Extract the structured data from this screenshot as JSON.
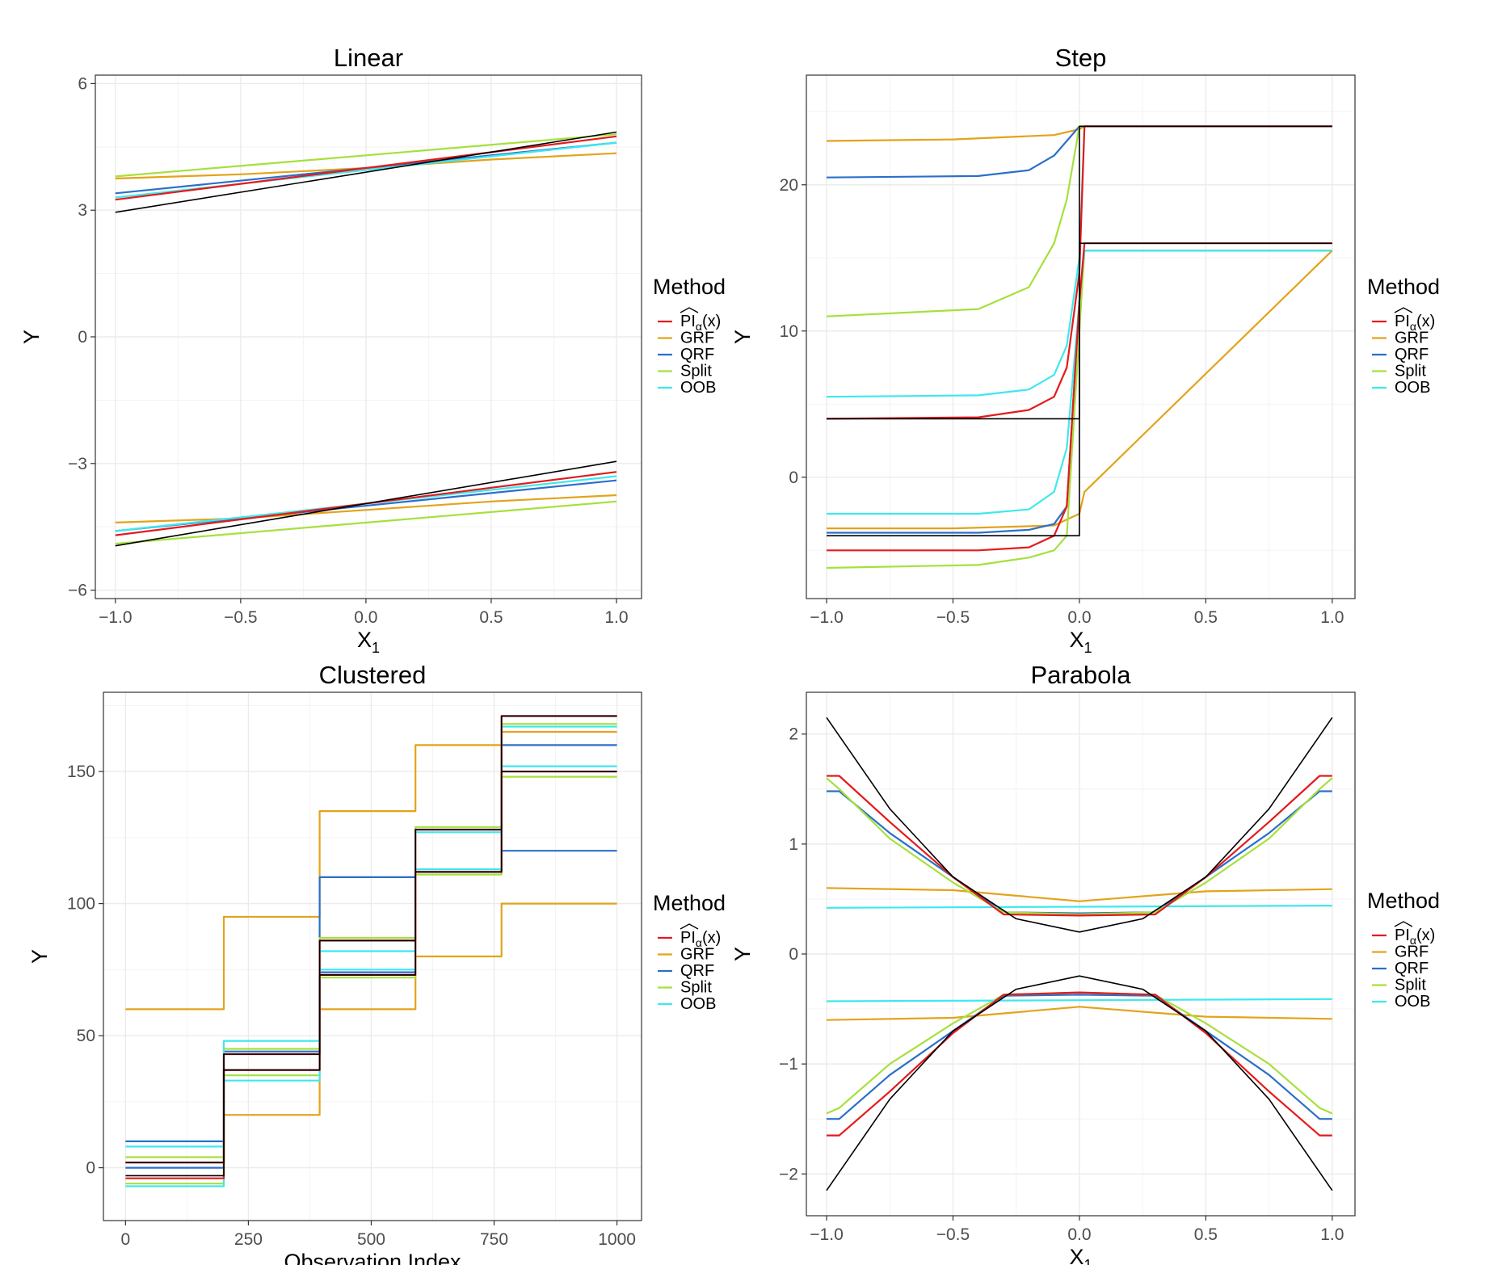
{
  "legend_title": "Method",
  "legend_items": [
    {
      "label": "PI",
      "sub": "α",
      "suffix": "(x)",
      "hat": true,
      "color": "#e41a1c"
    },
    {
      "label": "GRF",
      "color": "#e3a31b"
    },
    {
      "label": "QRF",
      "color": "#2b6fc9"
    },
    {
      "label": "Split",
      "color": "#a6e03c"
    },
    {
      "label": "OOB",
      "color": "#3ee8ee"
    }
  ],
  "colors": {
    "truth": "#000000",
    "grid": "#ebebeb",
    "panel_border": "#333333"
  },
  "chart_data": [
    {
      "type": "line",
      "title": "Linear",
      "xlabel": "X",
      "xlabel_sub": "1",
      "ylabel": "Y",
      "xlim": [
        -1.08,
        1.1
      ],
      "ylim": [
        -6.2,
        6.2
      ],
      "xticks": [
        -1.0,
        -0.5,
        0.0,
        0.5,
        1.0
      ],
      "xtick_labels": [
        "−1.0",
        "−0.5",
        "0.0",
        "0.5",
        "1.0"
      ],
      "yticks": [
        -6,
        -3,
        0,
        3,
        6
      ],
      "ytick_labels": [
        "−6",
        "−3",
        "0",
        "3",
        "6"
      ],
      "grid": true,
      "legend": "right",
      "series": [
        {
          "name": "truth",
          "x": [
            -1,
            1
          ],
          "upper": [
            2.95,
            4.85
          ],
          "lower": [
            -4.95,
            -2.95
          ]
        },
        {
          "name": "PI",
          "x": [
            -1,
            1
          ],
          "upper": [
            3.25,
            4.75
          ],
          "lower": [
            -4.7,
            -3.2
          ]
        },
        {
          "name": "GRF",
          "x": [
            -1,
            -0.5,
            0,
            0.5,
            1
          ],
          "upper": [
            3.75,
            3.85,
            4.0,
            4.2,
            4.35
          ],
          "lower": [
            -4.4,
            -4.3,
            -4.1,
            -3.9,
            -3.75
          ]
        },
        {
          "name": "QRF",
          "x": [
            -1,
            1
          ],
          "upper": [
            3.4,
            4.6
          ],
          "lower": [
            -4.6,
            -3.4
          ]
        },
        {
          "name": "Split",
          "x": [
            -1,
            1
          ],
          "upper": [
            3.8,
            4.8
          ],
          "lower": [
            -4.9,
            -3.9
          ]
        },
        {
          "name": "OOB",
          "x": [
            -1,
            1
          ],
          "upper": [
            3.3,
            4.6
          ],
          "lower": [
            -4.6,
            -3.3
          ]
        }
      ]
    },
    {
      "type": "line",
      "title": "Step",
      "xlabel": "X",
      "xlabel_sub": "1",
      "ylabel": "Y",
      "xlim": [
        -1.08,
        1.09
      ],
      "ylim": [
        -8.3,
        27.5
      ],
      "xticks": [
        -1.0,
        -0.5,
        0.0,
        0.5,
        1.0
      ],
      "xtick_labels": [
        "−1.0",
        "−0.5",
        "0.0",
        "0.5",
        "1.0"
      ],
      "yticks": [
        0,
        10,
        20
      ],
      "ytick_labels": [
        "0",
        "10",
        "20"
      ],
      "grid": true,
      "legend": "right",
      "series": [
        {
          "name": "truth",
          "x": [
            -1,
            0,
            0,
            1
          ],
          "upper": [
            4,
            4,
            24,
            24
          ],
          "lower": [
            -4,
            -4,
            16,
            16
          ]
        },
        {
          "name": "PI",
          "x": [
            -1,
            -0.4,
            -0.2,
            -0.1,
            -0.05,
            0,
            0.02,
            1
          ],
          "upper": [
            4.0,
            4.1,
            4.6,
            5.5,
            7.5,
            14,
            24,
            24
          ],
          "lower": [
            -5,
            -5,
            -4.8,
            -4,
            -2,
            12,
            16,
            16
          ]
        },
        {
          "name": "GRF",
          "x": [
            -1,
            -0.5,
            -0.1,
            0,
            0.02,
            1
          ],
          "upper": [
            23.0,
            23.1,
            23.4,
            23.8,
            24,
            24
          ],
          "lower": [
            -3.5,
            -3.5,
            -3.3,
            -2.5,
            -1,
            15.5
          ]
        },
        {
          "name": "QRF",
          "x": [
            -1,
            -0.4,
            -0.2,
            -0.1,
            -0.05,
            0,
            0.02,
            1
          ],
          "upper": [
            20.5,
            20.6,
            21,
            22,
            23,
            24,
            24,
            24
          ],
          "lower": [
            -3.8,
            -3.8,
            -3.6,
            -3.2,
            -2,
            12,
            15.5,
            15.5
          ]
        },
        {
          "name": "Split",
          "x": [
            -1,
            -0.4,
            -0.2,
            -0.1,
            -0.05,
            0,
            0.02,
            1
          ],
          "upper": [
            11,
            11.5,
            13,
            16,
            19,
            24,
            24,
            24
          ],
          "lower": [
            -6.2,
            -6,
            -5.5,
            -5,
            -4,
            10,
            15.5,
            15.5
          ]
        },
        {
          "name": "OOB",
          "x": [
            -1,
            -0.4,
            -0.2,
            -0.1,
            -0.05,
            0,
            0.02,
            1
          ],
          "upper": [
            5.5,
            5.6,
            6,
            7,
            9,
            15,
            24,
            24
          ],
          "lower": [
            -2.5,
            -2.5,
            -2.2,
            -1,
            2,
            12,
            15.5,
            15.5
          ]
        }
      ]
    },
    {
      "type": "line",
      "title": "Clustered",
      "xlabel": "Observation Index",
      "ylabel": "Y",
      "xlim": [
        -45,
        1050
      ],
      "ylim": [
        -20,
        180
      ],
      "xticks": [
        0,
        250,
        500,
        750,
        1000
      ],
      "xtick_labels": [
        "0",
        "250",
        "500",
        "750",
        "1000"
      ],
      "yticks": [
        0,
        50,
        100,
        150
      ],
      "ytick_labels": [
        "0",
        "50",
        "100",
        "150"
      ],
      "grid": true,
      "legend": "right",
      "series": [
        {
          "name": "truth",
          "x": [
            0,
            200,
            200,
            395,
            395,
            590,
            590,
            765,
            765,
            1000
          ],
          "upper": [
            2,
            2,
            43,
            43,
            86,
            86,
            128,
            128,
            171,
            171
          ],
          "lower": [
            -3,
            -3,
            37,
            37,
            73,
            73,
            112,
            112,
            150,
            150
          ]
        },
        {
          "name": "PI",
          "x": [
            0,
            200,
            200,
            395,
            395,
            590,
            590,
            765,
            765,
            1000
          ],
          "upper": [
            2,
            2,
            43,
            43,
            86,
            86,
            128,
            128,
            171,
            171
          ],
          "lower": [
            -4,
            -4,
            37,
            37,
            73,
            73,
            112,
            112,
            150,
            150
          ]
        },
        {
          "name": "GRF",
          "x": [
            0,
            200,
            200,
            395,
            395,
            590,
            590,
            765,
            765,
            1000
          ],
          "upper": [
            60,
            60,
            95,
            95,
            135,
            135,
            160,
            160,
            165,
            165
          ],
          "lower": [
            2,
            2,
            20,
            20,
            60,
            60,
            80,
            80,
            100,
            100
          ]
        },
        {
          "name": "QRF",
          "x": [
            0,
            200,
            200,
            395,
            395,
            590,
            590,
            765,
            765,
            1000
          ],
          "upper": [
            10,
            10,
            44,
            44,
            110,
            110,
            128,
            128,
            160,
            160
          ],
          "lower": [
            0,
            0,
            37,
            37,
            74,
            74,
            112,
            112,
            120,
            120
          ]
        },
        {
          "name": "Split",
          "x": [
            0,
            200,
            200,
            395,
            395,
            590,
            590,
            765,
            765,
            1000
          ],
          "upper": [
            4,
            4,
            45,
            45,
            87,
            87,
            129,
            129,
            168,
            168
          ],
          "lower": [
            -6,
            -6,
            35,
            35,
            72,
            72,
            111,
            111,
            148,
            148
          ]
        },
        {
          "name": "OOB",
          "x": [
            0,
            200,
            200,
            395,
            395,
            590,
            590,
            765,
            765,
            1000
          ],
          "upper": [
            8,
            8,
            48,
            48,
            82,
            82,
            127,
            127,
            167,
            167
          ],
          "lower": [
            -7,
            -7,
            33,
            33,
            75,
            75,
            113,
            113,
            152,
            152
          ]
        }
      ]
    },
    {
      "type": "line",
      "title": "Parabola",
      "xlabel": "X",
      "xlabel_sub": "1",
      "ylabel": "Y",
      "xlim": [
        -1.08,
        1.09
      ],
      "ylim": [
        -2.38,
        2.38
      ],
      "xticks": [
        -1.0,
        -0.5,
        0.0,
        0.5,
        1.0
      ],
      "xtick_labels": [
        "−1.0",
        "−0.5",
        "0.0",
        "0.5",
        "1.0"
      ],
      "yticks": [
        -2,
        -1,
        0,
        1,
        2
      ],
      "ytick_labels": [
        "−2",
        "−1",
        "0",
        "1",
        "2"
      ],
      "grid": true,
      "legend": "right",
      "series": [
        {
          "name": "truth",
          "x": [
            -1,
            -0.75,
            -0.5,
            -0.25,
            0,
            0.25,
            0.5,
            0.75,
            1
          ],
          "upper": [
            2.15,
            1.32,
            0.7,
            0.32,
            0.2,
            0.32,
            0.7,
            1.32,
            2.15
          ],
          "lower": [
            -2.15,
            -1.32,
            -0.7,
            -0.32,
            -0.2,
            -0.32,
            -0.7,
            -1.32,
            -2.15
          ]
        },
        {
          "name": "PI",
          "x": [
            -1,
            -0.95,
            -0.75,
            -0.5,
            -0.3,
            0,
            0.3,
            0.5,
            0.75,
            0.95,
            1
          ],
          "upper": [
            1.62,
            1.62,
            1.2,
            0.7,
            0.36,
            0.35,
            0.36,
            0.7,
            1.2,
            1.62,
            1.62
          ],
          "lower": [
            -1.65,
            -1.65,
            -1.25,
            -0.72,
            -0.37,
            -0.35,
            -0.37,
            -0.72,
            -1.25,
            -1.65,
            -1.65
          ]
        },
        {
          "name": "GRF",
          "x": [
            -1,
            -0.5,
            0,
            0.5,
            1
          ],
          "upper": [
            0.6,
            0.58,
            0.48,
            0.57,
            0.59
          ],
          "lower": [
            -0.6,
            -0.58,
            -0.48,
            -0.57,
            -0.59
          ]
        },
        {
          "name": "QRF",
          "x": [
            -1,
            -0.95,
            -0.75,
            -0.5,
            -0.3,
            0,
            0.3,
            0.5,
            0.75,
            0.95,
            1
          ],
          "upper": [
            1.48,
            1.48,
            1.1,
            0.7,
            0.38,
            0.37,
            0.38,
            0.7,
            1.1,
            1.48,
            1.48
          ],
          "lower": [
            -1.5,
            -1.5,
            -1.1,
            -0.7,
            -0.38,
            -0.37,
            -0.38,
            -0.7,
            -1.1,
            -1.5,
            -1.5
          ]
        },
        {
          "name": "Split",
          "x": [
            -1,
            -0.95,
            -0.75,
            -0.5,
            -0.3,
            0,
            0.3,
            0.5,
            0.75,
            0.95,
            1
          ],
          "upper": [
            1.6,
            1.5,
            1.05,
            0.65,
            0.38,
            0.36,
            0.38,
            0.65,
            1.05,
            1.5,
            1.6
          ],
          "lower": [
            -1.45,
            -1.4,
            -1.0,
            -0.63,
            -0.37,
            -0.35,
            -0.37,
            -0.63,
            -1.0,
            -1.4,
            -1.45
          ]
        },
        {
          "name": "OOB",
          "x": [
            -1,
            0,
            1
          ],
          "upper": [
            0.42,
            0.43,
            0.44
          ],
          "lower": [
            -0.43,
            -0.42,
            -0.41
          ]
        }
      ]
    }
  ]
}
